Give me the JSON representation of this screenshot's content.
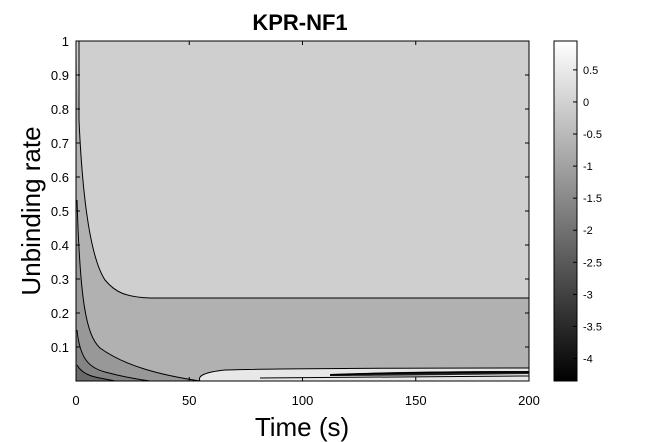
{
  "chart_data": {
    "type": "heatmap",
    "title": "KPR-NF1",
    "xlabel": "Time (s)",
    "ylabel": "Unbinding rate",
    "xlim": [
      0,
      200
    ],
    "ylim": [
      0,
      1
    ],
    "x_ticks": [
      "0",
      "50",
      "100",
      "150",
      "200"
    ],
    "y_ticks": [
      "0.1",
      "0.2",
      "0.3",
      "0.4",
      "0.5",
      "0.6",
      "0.7",
      "0.8",
      "0.9",
      "1"
    ],
    "colorbar": {
      "range": [
        -4.35,
        0.95
      ],
      "ticks": [
        "0.5",
        "0",
        "-0.5",
        "-1",
        "-1.5",
        "-2",
        "-2.5",
        "-3",
        "-3.5",
        "-4"
      ],
      "colormap": "gray"
    },
    "grid": false,
    "contours": [
      {
        "level": -0.5,
        "fill": "#cfcfcf",
        "boundary_y_at_large_time": 0.245
      },
      {
        "level": -1.0,
        "fill": "#b1b1b1",
        "boundary_x_at_zero_rate": 50
      },
      {
        "level": -1.5,
        "fill": "#989898"
      },
      {
        "level": -2.0,
        "fill": "#848484"
      },
      {
        "level": 0.5,
        "fill": "#e8e8e8",
        "region": "low-rate band beyond t = 55 s"
      }
    ]
  }
}
